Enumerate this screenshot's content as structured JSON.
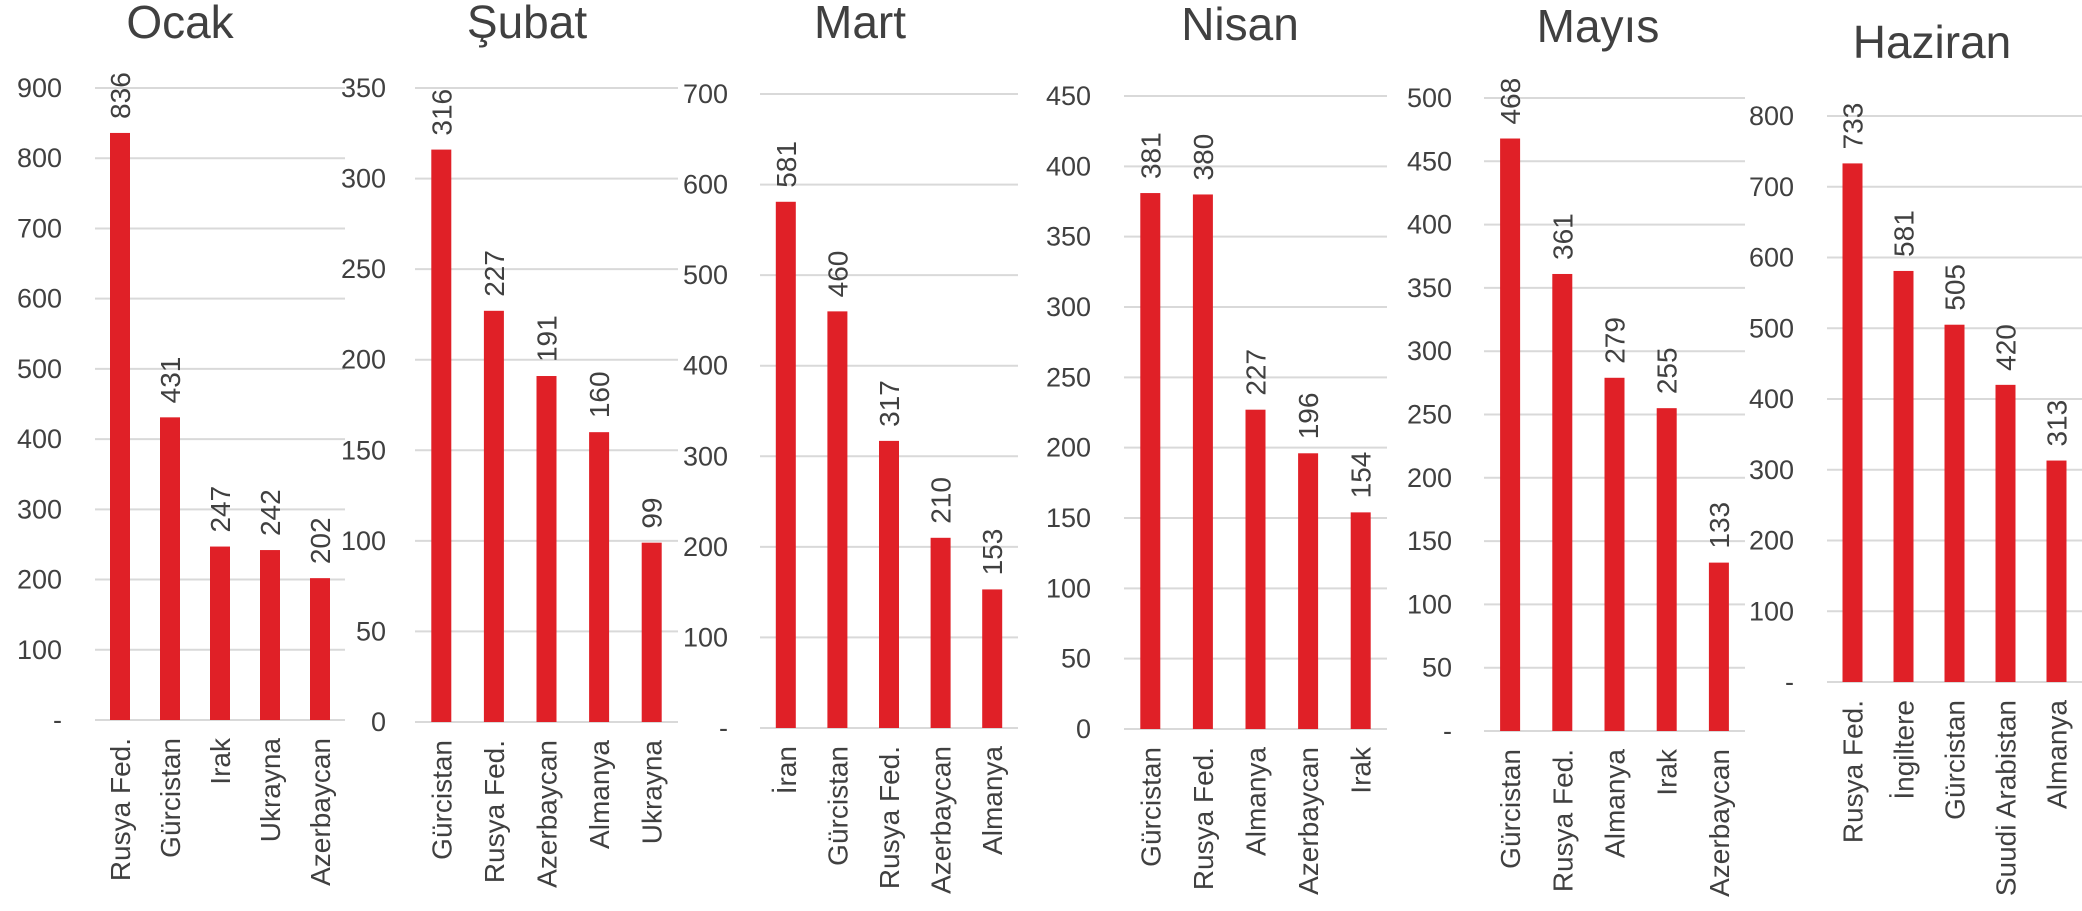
{
  "bar_color": "#e02027",
  "text_color": "#404040",
  "grid_color": "#d9d9d9",
  "chart_data": [
    {
      "type": "bar",
      "title": "Ocak",
      "categories": [
        "Rusya Fed.",
        "Gürcistan",
        "Irak",
        "Ukrayna",
        "Azerbaycan"
      ],
      "values": [
        836,
        431,
        247,
        242,
        202
      ],
      "ylim": [
        0,
        900
      ],
      "yticks": [
        0,
        100,
        200,
        300,
        400,
        500,
        600,
        700,
        800,
        900
      ],
      "ytick_labels": [
        "-",
        "100",
        "200",
        "300",
        "400",
        "500",
        "600",
        "700",
        "800",
        "900"
      ],
      "grid": true
    },
    {
      "type": "bar",
      "title": "Şubat",
      "categories": [
        "Gürcistan",
        "Rusya Fed.",
        "Azerbaycan",
        "Almanya",
        "Ukrayna"
      ],
      "values": [
        316,
        227,
        191,
        160,
        99
      ],
      "ylim": [
        0,
        350
      ],
      "yticks": [
        0,
        50,
        100,
        150,
        200,
        250,
        300,
        350
      ],
      "ytick_labels": [
        "0",
        "50",
        "100",
        "150",
        "200",
        "250",
        "300",
        "350"
      ],
      "grid": true
    },
    {
      "type": "bar",
      "title": "Mart",
      "categories": [
        "İran",
        "Gürcistan",
        "Rusya Fed.",
        "Azerbaycan",
        "Almanya"
      ],
      "values": [
        581,
        460,
        317,
        210,
        153
      ],
      "ylim": [
        0,
        700
      ],
      "yticks": [
        0,
        100,
        200,
        300,
        400,
        500,
        600,
        700
      ],
      "ytick_labels": [
        "-",
        "100",
        "200",
        "300",
        "400",
        "500",
        "600",
        "700"
      ],
      "grid": true
    },
    {
      "type": "bar",
      "title": "Nisan",
      "categories": [
        "Gürcistan",
        "Rusya Fed.",
        "Almanya",
        "Azerbaycan",
        "Irak"
      ],
      "values": [
        381,
        380,
        227,
        196,
        154
      ],
      "ylim": [
        0,
        450
      ],
      "yticks": [
        0,
        50,
        100,
        150,
        200,
        250,
        300,
        350,
        400,
        450
      ],
      "ytick_labels": [
        "0",
        "50",
        "100",
        "150",
        "200",
        "250",
        "300",
        "350",
        "400",
        "450"
      ],
      "grid": true
    },
    {
      "type": "bar",
      "title": "Mayıs",
      "categories": [
        "Gürcistan",
        "Rusya Fed.",
        "Almanya",
        "Irak",
        "Azerbaycan"
      ],
      "values": [
        468,
        361,
        279,
        255,
        133
      ],
      "ylim": [
        0,
        500
      ],
      "yticks": [
        0,
        50,
        100,
        150,
        200,
        250,
        300,
        350,
        400,
        450,
        500
      ],
      "ytick_labels": [
        "-",
        "50",
        "100",
        "150",
        "200",
        "250",
        "300",
        "350",
        "400",
        "450",
        "500"
      ],
      "grid": true
    },
    {
      "type": "bar",
      "title": "Haziran",
      "categories": [
        "Rusya Fed.",
        "İngiltere",
        "Gürcistan",
        "Suudi Arabistan",
        "Almanya"
      ],
      "values": [
        733,
        581,
        505,
        420,
        313
      ],
      "ylim": [
        0,
        800
      ],
      "yticks": [
        0,
        100,
        200,
        300,
        400,
        500,
        600,
        700,
        800
      ],
      "ytick_labels": [
        "-",
        "100",
        "200",
        "300",
        "400",
        "500",
        "600",
        "700",
        "800"
      ],
      "grid": true
    }
  ]
}
